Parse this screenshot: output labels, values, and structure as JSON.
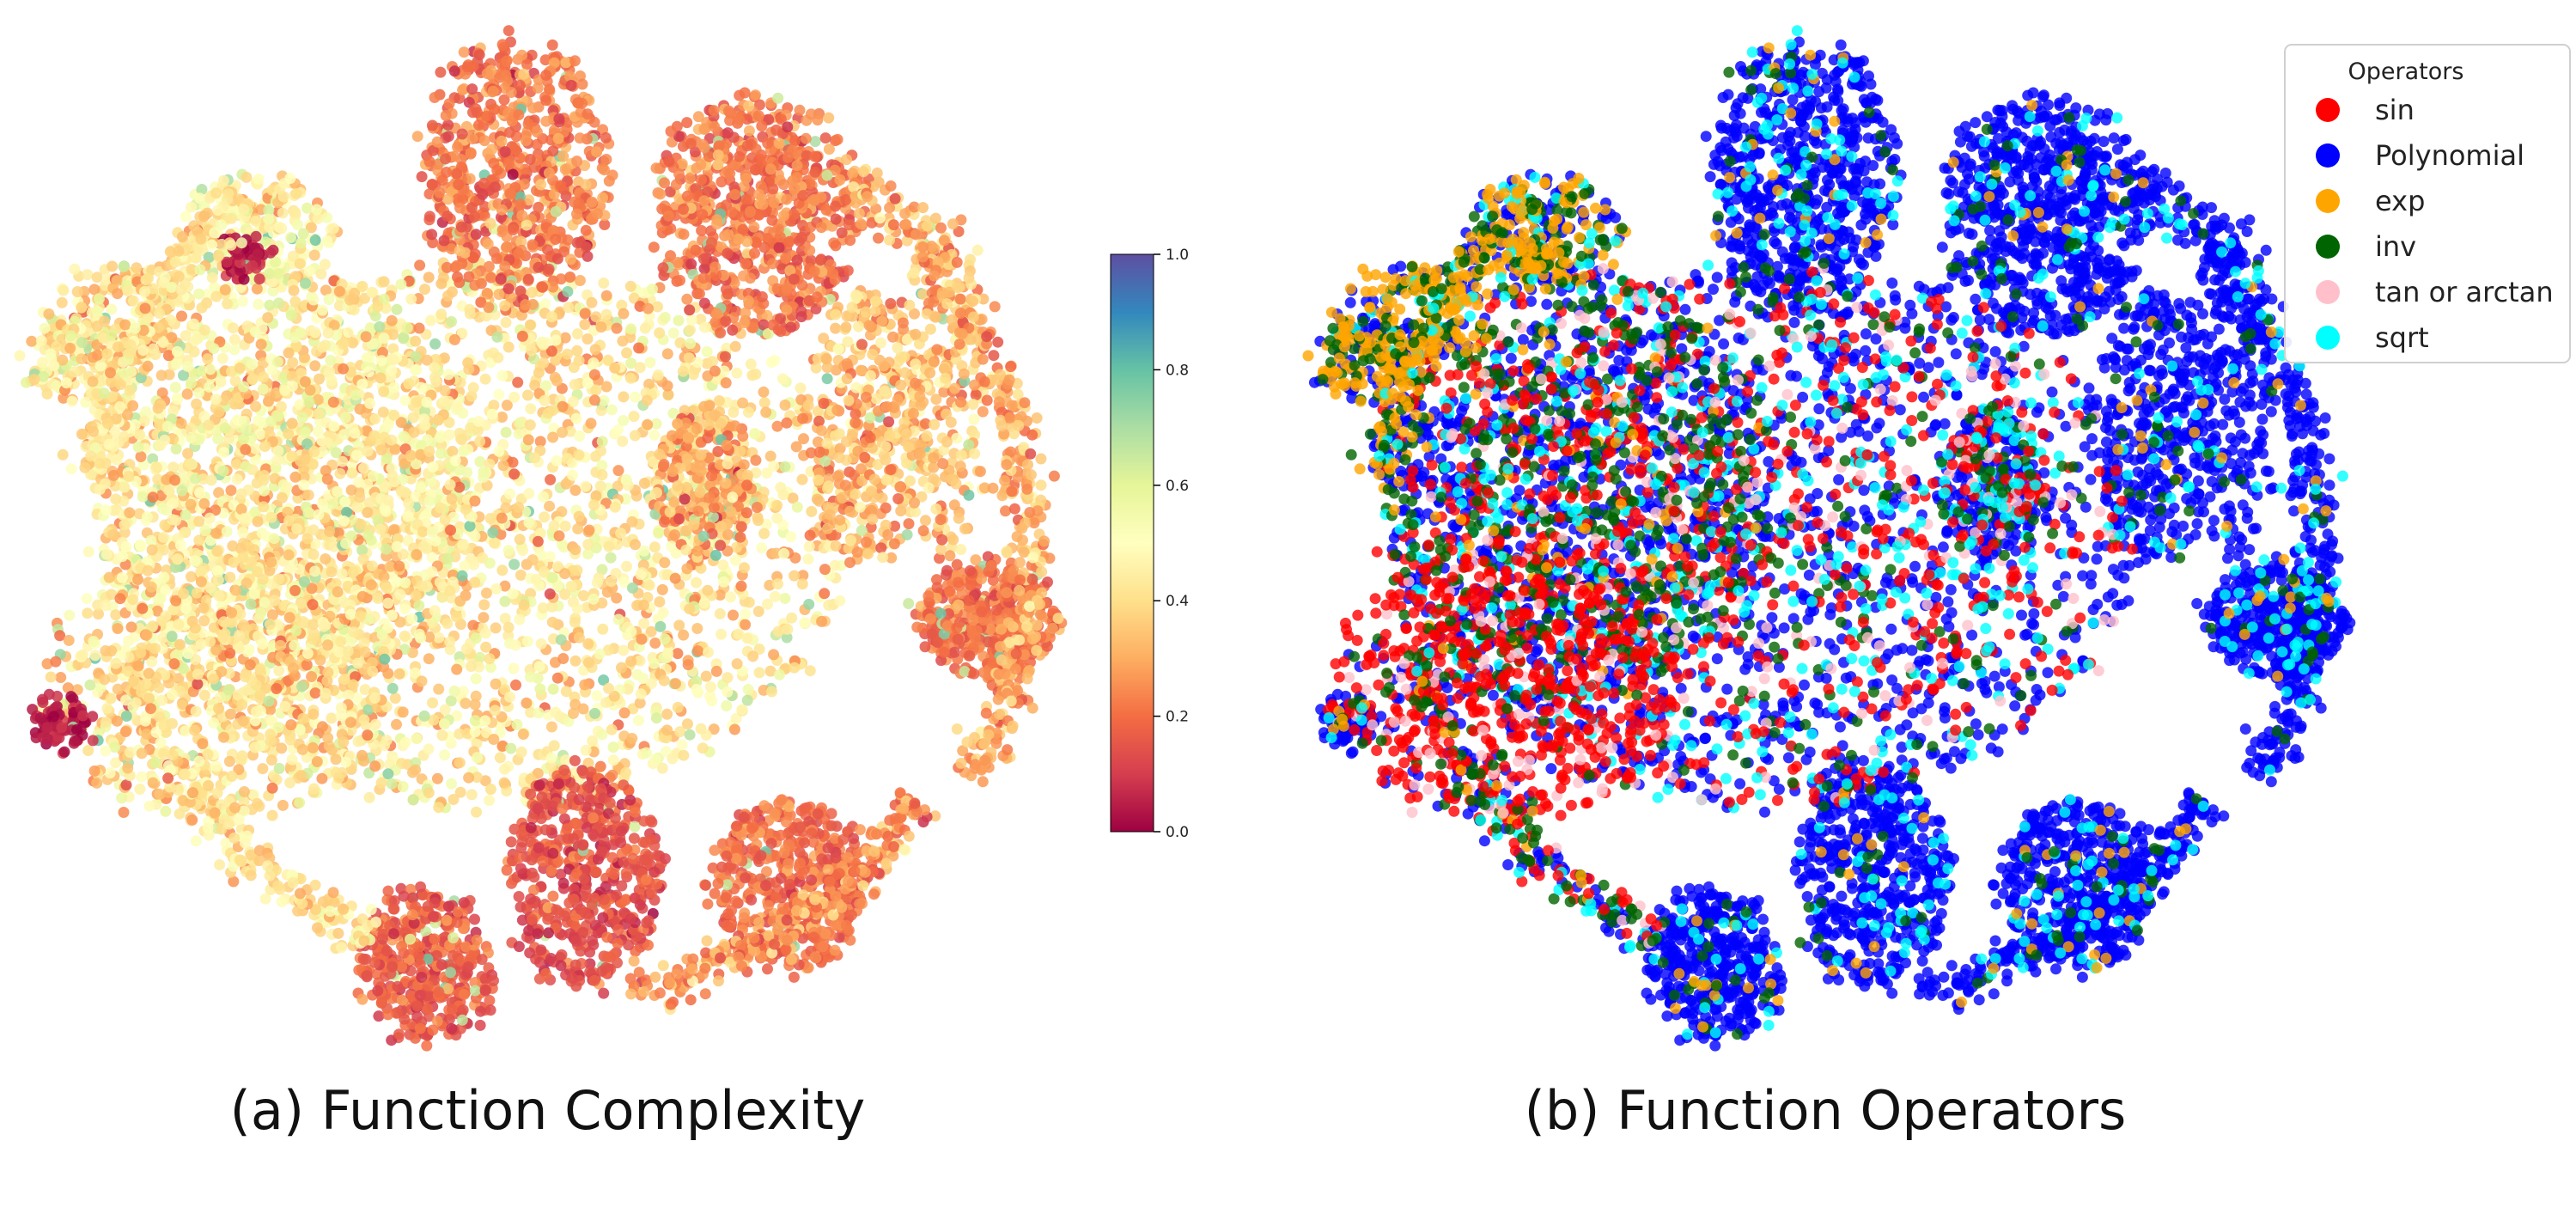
{
  "captions": {
    "a": "(a) Function Complexity",
    "b": "(b) Function Operators"
  },
  "chart_data": [
    {
      "id": "a",
      "type": "scatter",
      "title": "(a) Function Complexity",
      "xlabel": "",
      "ylabel": "",
      "grid": false,
      "axes_visible": false,
      "color_encoding": "continuous",
      "colormap": "Spectral",
      "colorbar": {
        "range": [
          0.0,
          1.0
        ],
        "ticks": [
          0.0,
          0.2,
          0.4,
          0.6,
          0.8,
          1.0
        ],
        "tick_labels": [
          "0.0",
          "0.2",
          "0.4",
          "0.6",
          "0.8",
          "1.0"
        ],
        "stops": [
          "#9e0142",
          "#d53e4f",
          "#f46d43",
          "#fdae61",
          "#fee08b",
          "#ffffbf",
          "#e6f598",
          "#abdda4",
          "#66c2a5",
          "#3288bd",
          "#5e4fa2"
        ]
      },
      "note": "t-SNE embedding; thousands of points, values mostly in 0.1–0.5"
    },
    {
      "id": "b",
      "type": "scatter",
      "title": "(b) Function Operators",
      "xlabel": "",
      "ylabel": "",
      "grid": false,
      "axes_visible": false,
      "color_encoding": "categorical",
      "legend": {
        "title": "Operators",
        "placement": "top-right",
        "entries": [
          {
            "name": "sin",
            "color": "#ff0000"
          },
          {
            "name": "Polynomial",
            "color": "#0000ff"
          },
          {
            "name": "exp",
            "color": "#ffa500"
          },
          {
            "name": "inv",
            "color": "#006400"
          },
          {
            "name": "tan or arctan",
            "color": "#ffc0cb"
          },
          {
            "name": "sqrt",
            "color": "#00ffff"
          }
        ]
      },
      "note": "t-SNE embedding of the same points colored by operator category; Polynomial dominant"
    }
  ]
}
